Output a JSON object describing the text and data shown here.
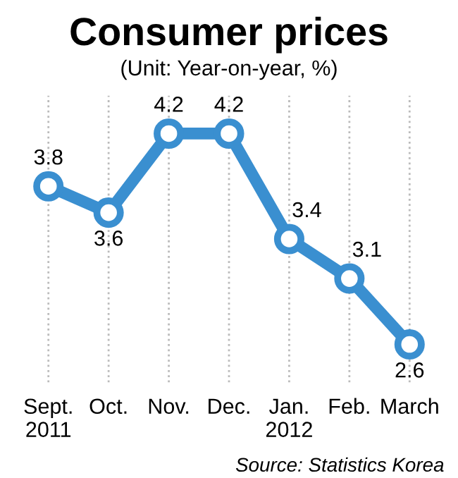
{
  "chart_data": {
    "type": "line",
    "title": "Consumer prices",
    "subtitle": "(Unit: Year-on-year, %)",
    "categories": [
      "Sept.\n2011",
      "Oct.",
      "Nov.",
      "Dec.",
      "Jan.\n2012",
      "Feb.",
      "March"
    ],
    "series": [
      {
        "color": "#3a8fd0",
        "values": [
          3.8,
          3.6,
          4.2,
          4.2,
          3.4,
          3.1,
          2.6
        ]
      }
    ],
    "data_labels": true,
    "marker": "circle",
    "line_style": "solid",
    "grid": "x",
    "annotations": [
      "Source: Statistics Korea"
    ]
  }
}
